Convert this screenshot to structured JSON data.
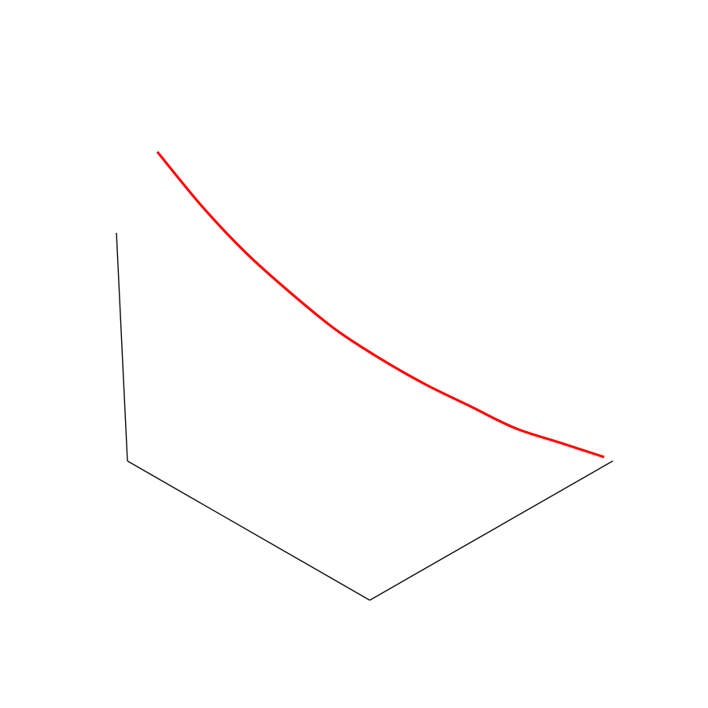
{
  "chart_data": {
    "type": "line",
    "projection": "3d",
    "title": "",
    "xlabel": "",
    "ylabel": "",
    "zlabel": "",
    "grid": false,
    "axis_color": "#000000",
    "series": [
      {
        "color": "#ff0000",
        "points": [
          {
            "t": 0.0,
            "z": 1.0
          },
          {
            "t": 0.1,
            "z": 0.85
          },
          {
            "t": 0.2,
            "z": 0.72
          },
          {
            "t": 0.3,
            "z": 0.61
          },
          {
            "t": 0.4,
            "z": 0.51
          },
          {
            "t": 0.5,
            "z": 0.43
          },
          {
            "t": 0.6,
            "z": 0.36
          },
          {
            "t": 0.7,
            "z": 0.3
          },
          {
            "t": 0.8,
            "z": 0.24
          },
          {
            "t": 0.9,
            "z": 0.2
          },
          {
            "t": 1.0,
            "z": 0.16
          }
        ]
      }
    ]
  }
}
